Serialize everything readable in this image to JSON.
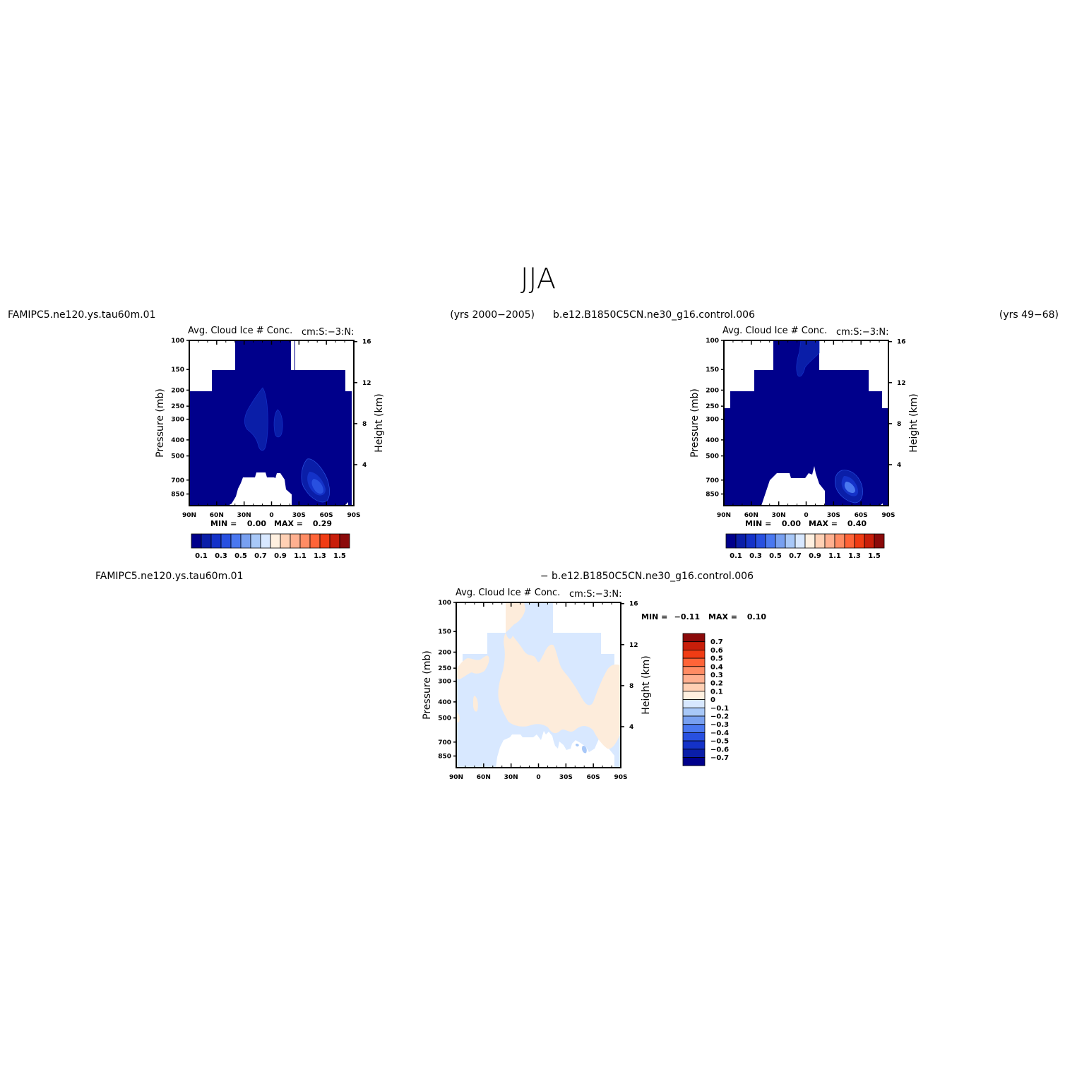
{
  "page": {
    "title": "JJA"
  },
  "panels": [
    {
      "left_header": "FAMIPC5.ne120.ys.tau60m.01",
      "right_header": "(yrs 2000-2005)",
      "title_left": "Avg. Cloud Ice # Conc.",
      "title_right": "cm:S:-3:N:",
      "ylabel_left": "Pressure (mb)",
      "ylabel_right": "Height (km)",
      "min_label": "MIN =",
      "min_value": "0.00",
      "max_label": "MAX =",
      "max_value": "0.29"
    },
    {
      "left_header": "b.e12.B1850C5CN.ne30_g16.control.006",
      "right_header": "(yrs 49-68)",
      "title_left": "Avg. Cloud Ice # Conc.",
      "title_right": "cm:S:-3:N:",
      "ylabel_left": "Pressure (mb)",
      "ylabel_right": "Height (km)",
      "min_label": "MIN =",
      "min_value": "0.00",
      "max_label": "MAX =",
      "max_value": "0.40"
    },
    {
      "left_header": "FAMIPC5.ne120.ys.tau60m.01",
      "right_header": "- b.e12.B1850C5CN.ne30_g16.control.006",
      "title_left": "Avg. Cloud Ice # Conc.",
      "title_right": "cm:S:-3:N:",
      "ylabel_left": "Pressure (mb)",
      "ylabel_right": "Height (km)",
      "min_label": "MIN =",
      "min_value": "-0.11",
      "max_label": "MAX =",
      "max_value": "0.10"
    }
  ],
  "colorbars": {
    "abs": {
      "colors": [
        "#00008b",
        "#0a1ea8",
        "#1432c8",
        "#2850e0",
        "#4a78f0",
        "#78a0f0",
        "#a8c8f8",
        "#d8e8ff",
        "#fff0e0",
        "#ffd0b4",
        "#ffb090",
        "#ff8c64",
        "#ff6438",
        "#f03c14",
        "#c81e0a",
        "#8b0a0a"
      ],
      "labels": [
        "0.1",
        "0.3",
        "0.5",
        "0.7",
        "0.9",
        "1.1",
        "1.3",
        "1.5"
      ]
    },
    "diff": {
      "colors": [
        "#8b0a0a",
        "#c81e0a",
        "#f03c14",
        "#ff6438",
        "#ff8c64",
        "#ffb090",
        "#ffd0b4",
        "#fff0e0",
        "#d8e8ff",
        "#a8c8f8",
        "#78a0f0",
        "#4a78f0",
        "#2850e0",
        "#1432c8",
        "#0a1ea8",
        "#00008b"
      ],
      "labels": [
        "0.7",
        "0.6",
        "0.5",
        "0.4",
        "0.3",
        "0.2",
        "0.1",
        "0",
        "-0.1",
        "-0.2",
        "-0.3",
        "-0.4",
        "-0.5",
        "-0.6",
        "-0.7"
      ]
    }
  },
  "chart_data": [
    {
      "type": "heatmap",
      "title": "Avg. Cloud Ice # Conc.",
      "units": "cm:S:-3:N:",
      "x_ticks": [
        "90N",
        "60N",
        "30N",
        "0",
        "30S",
        "60S",
        "90S"
      ],
      "xlim": [
        90,
        -90
      ],
      "ylabel": "Pressure (mb)",
      "y_ticks": [
        100,
        150,
        200,
        250,
        300,
        400,
        500,
        700,
        850
      ],
      "ylim": [
        100,
        1000
      ],
      "yscale": "log",
      "ylabel_right": "Height (km)",
      "y_right_ticks": [
        16,
        12,
        8,
        4
      ],
      "min": 0.0,
      "max": 0.29,
      "features": [
        {
          "type": "contour_region",
          "lat": -15,
          "pressure": 300,
          "value": 0.1
        },
        {
          "type": "contour_region",
          "lat": -10,
          "pressure": 300,
          "value": 0.1
        },
        {
          "type": "contour_region",
          "lat": -55,
          "pressure": 700,
          "value": 0.29
        }
      ]
    },
    {
      "type": "heatmap",
      "title": "Avg. Cloud Ice # Conc.",
      "units": "cm:S:-3:N:",
      "x_ticks": [
        "90N",
        "60N",
        "30N",
        "0",
        "30S",
        "60S",
        "90S"
      ],
      "xlim": [
        90,
        -90
      ],
      "ylabel": "Pressure (mb)",
      "y_ticks": [
        100,
        150,
        200,
        250,
        300,
        400,
        500,
        700,
        850
      ],
      "ylim": [
        100,
        1000
      ],
      "yscale": "log",
      "ylabel_right": "Height (km)",
      "y_right_ticks": [
        16,
        12,
        8,
        4
      ],
      "min": 0.0,
      "max": 0.4,
      "features": [
        {
          "type": "contour_region",
          "lat": 5,
          "pressure": 130,
          "value": 0.1
        },
        {
          "type": "contour_region",
          "lat": -50,
          "pressure": 700,
          "value": 0.4
        }
      ]
    },
    {
      "type": "heatmap",
      "title": "Avg. Cloud Ice # Conc.",
      "units": "cm:S:-3:N:",
      "x_ticks": [
        "90N",
        "60N",
        "30N",
        "0",
        "30S",
        "60S",
        "90S"
      ],
      "xlim": [
        90,
        -90
      ],
      "ylabel": "Pressure (mb)",
      "y_ticks": [
        100,
        150,
        200,
        250,
        300,
        400,
        500,
        700,
        850
      ],
      "ylim": [
        100,
        1000
      ],
      "yscale": "log",
      "ylabel_right": "Height (km)",
      "y_right_ticks": [
        16,
        12,
        8,
        4
      ],
      "min": -0.11,
      "max": 0.1
    }
  ]
}
